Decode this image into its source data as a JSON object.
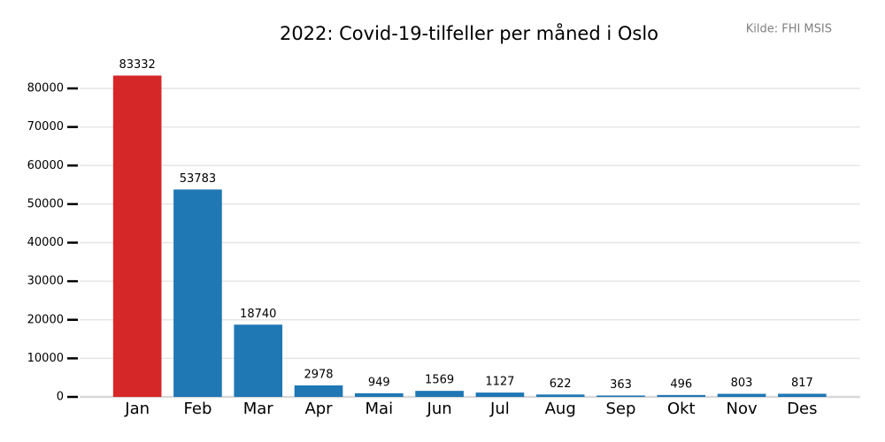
{
  "chart_data": {
    "type": "bar",
    "title": "2022: Covid-19-tilfeller per måned i Oslo",
    "source": "Kilde: FHI MSIS",
    "categories": [
      "Jan",
      "Feb",
      "Mar",
      "Apr",
      "Mai",
      "Jun",
      "Jul",
      "Aug",
      "Sep",
      "Okt",
      "Nov",
      "Des"
    ],
    "values": [
      83332,
      53783,
      18740,
      2978,
      949,
      1569,
      1127,
      622,
      363,
      496,
      803,
      817
    ],
    "colors": [
      "#d62728",
      "#1f77b4",
      "#1f77b4",
      "#1f77b4",
      "#1f77b4",
      "#1f77b4",
      "#1f77b4",
      "#1f77b4",
      "#1f77b4",
      "#1f77b4",
      "#1f77b4",
      "#1f77b4"
    ],
    "ylim": [
      0,
      87500
    ],
    "yticks": [
      0,
      10000,
      20000,
      30000,
      40000,
      50000,
      60000,
      70000,
      80000
    ],
    "grid": true
  }
}
